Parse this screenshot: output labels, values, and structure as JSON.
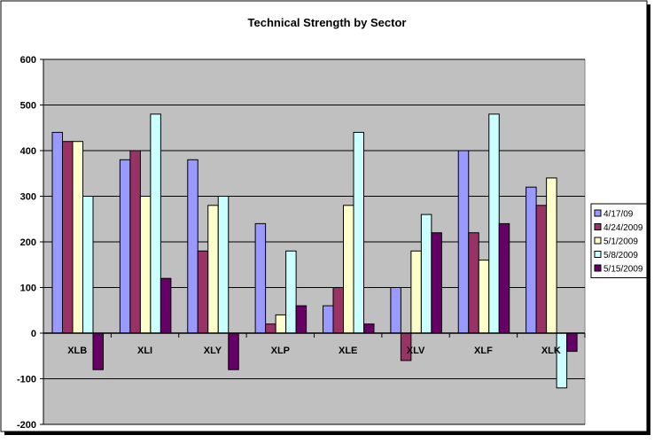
{
  "chart_data": {
    "type": "bar",
    "title": "Technical Strength by Sector",
    "xlabel": "",
    "ylabel": "",
    "categories": [
      "XLB",
      "XLI",
      "XLY",
      "XLP",
      "XLE",
      "XLV",
      "XLF",
      "XLK"
    ],
    "ylim": [
      -200,
      600
    ],
    "yticks": [
      -200,
      -100,
      0,
      100,
      200,
      300,
      400,
      500,
      600
    ],
    "ytick_labels": [
      "-200",
      "-100",
      "0",
      "100",
      "200",
      "300",
      "400",
      "500",
      "600"
    ],
    "grid": true,
    "legend_position": "right",
    "plot_background": "#c0c0c0",
    "series": [
      {
        "name": "4/17/09",
        "color": "#9999ff",
        "values": [
          440,
          380,
          380,
          240,
          60,
          100,
          400,
          320
        ]
      },
      {
        "name": "4/24/2009",
        "color": "#993366",
        "values": [
          420,
          400,
          180,
          20,
          100,
          -60,
          220,
          280
        ]
      },
      {
        "name": "5/1/2009",
        "color": "#ffffcc",
        "values": [
          420,
          300,
          280,
          40,
          280,
          180,
          160,
          340
        ]
      },
      {
        "name": "5/8/2009",
        "color": "#ccffff",
        "values": [
          300,
          480,
          300,
          180,
          440,
          260,
          480,
          -120
        ]
      },
      {
        "name": "5/15/2009",
        "color": "#660066",
        "values": [
          -80,
          120,
          -80,
          60,
          20,
          220,
          240,
          -40
        ]
      }
    ]
  }
}
